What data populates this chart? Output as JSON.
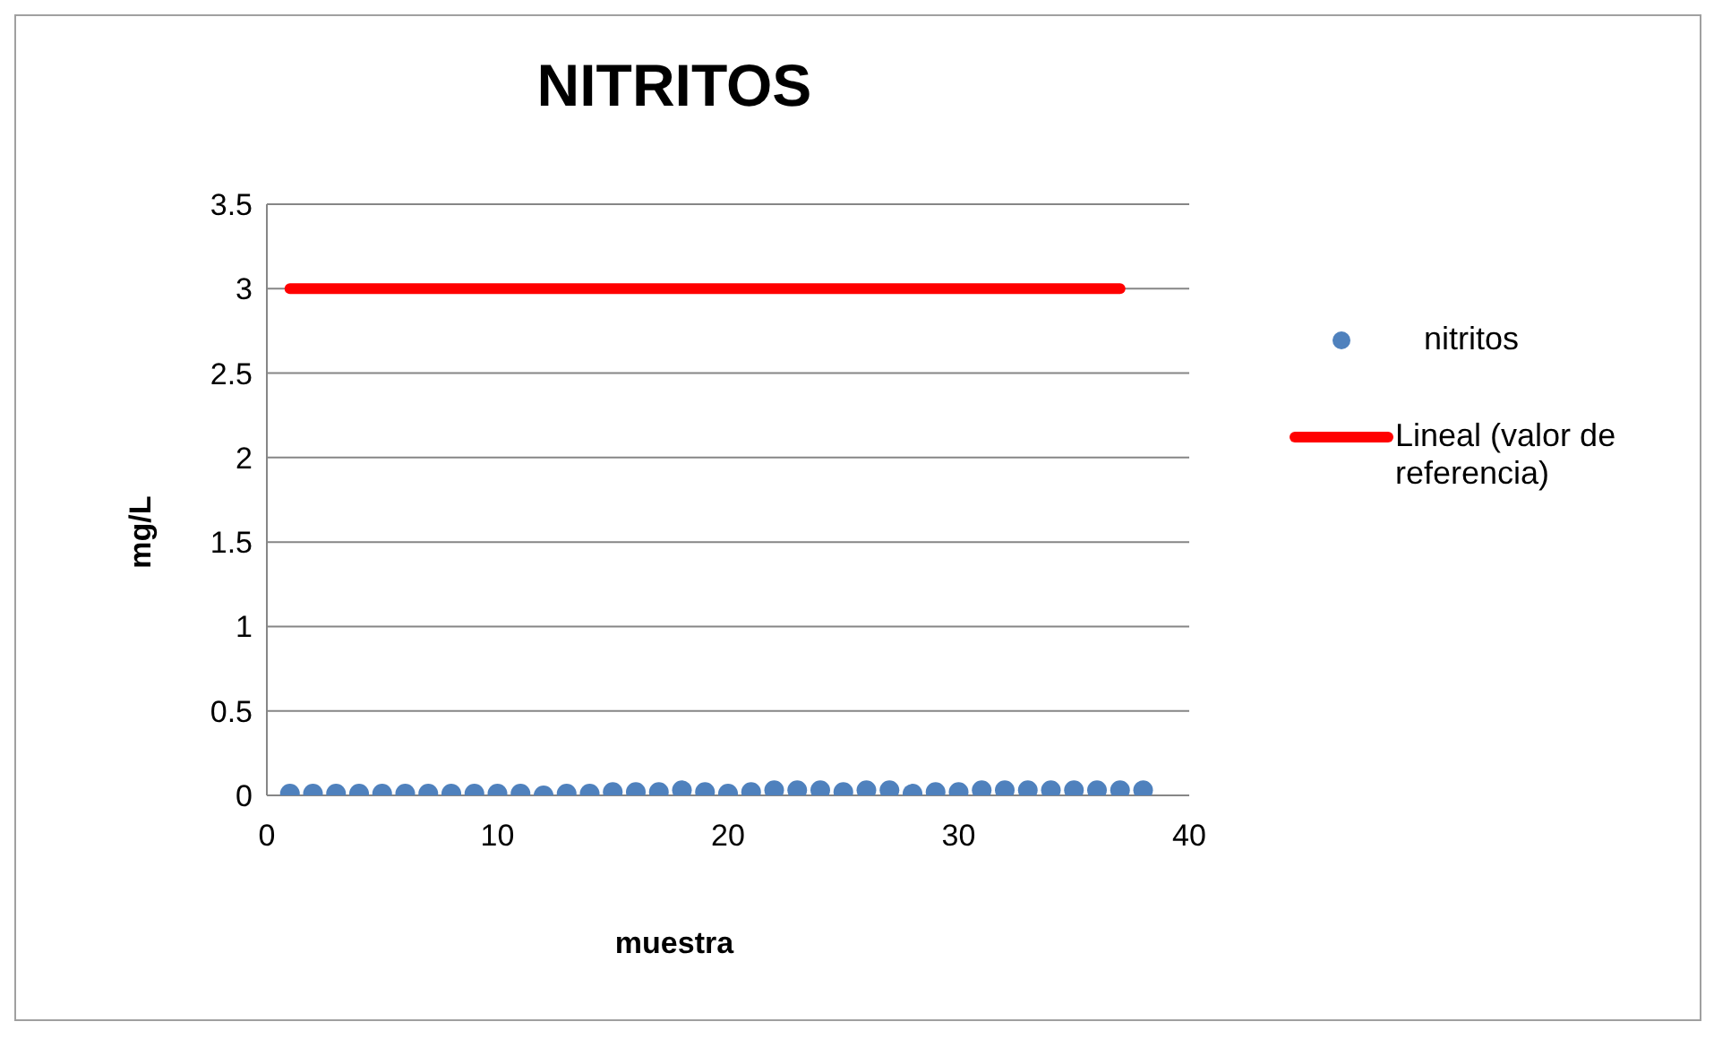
{
  "chart_data": {
    "type": "scatter",
    "title": "NITRITOS",
    "xlabel": "muestra",
    "ylabel": "mg/L",
    "xlim": [
      0,
      40
    ],
    "xticks": [
      0,
      10,
      20,
      30,
      40
    ],
    "ylim": [
      0,
      3.5
    ],
    "yticks": [
      0,
      0.5,
      1,
      1.5,
      2,
      2.5,
      3,
      3.5
    ],
    "grid": "y",
    "legend": "right",
    "marker": "circle",
    "series": [
      {
        "name": "nitritos",
        "color": "#4f81bd",
        "x": [
          1,
          2,
          3,
          4,
          5,
          6,
          7,
          8,
          9,
          10,
          11,
          12,
          13,
          14,
          15,
          16,
          17,
          18,
          19,
          20,
          21,
          22,
          23,
          24,
          25,
          26,
          27,
          28,
          29,
          30,
          31,
          32,
          33,
          34,
          35,
          36,
          37,
          38
        ],
        "values": [
          0.01,
          0.01,
          0.01,
          0.01,
          0.01,
          0.01,
          0.01,
          0.01,
          0.01,
          0.01,
          0.01,
          0,
          0.01,
          0.01,
          0.02,
          0.02,
          0.02,
          0.03,
          0.02,
          0.01,
          0.02,
          0.03,
          0.03,
          0.03,
          0.02,
          0.03,
          0.03,
          0.01,
          0.02,
          0.02,
          0.03,
          0.03,
          0.03,
          0.03,
          0.03,
          0.03,
          0.03,
          0.03
        ]
      },
      {
        "name": "Lineal (valor de referencia)",
        "type": "line",
        "color": "#ff0000",
        "marker": "none",
        "line_style": "solid",
        "x": [
          1,
          37
        ],
        "values": [
          3,
          3
        ]
      }
    ]
  }
}
